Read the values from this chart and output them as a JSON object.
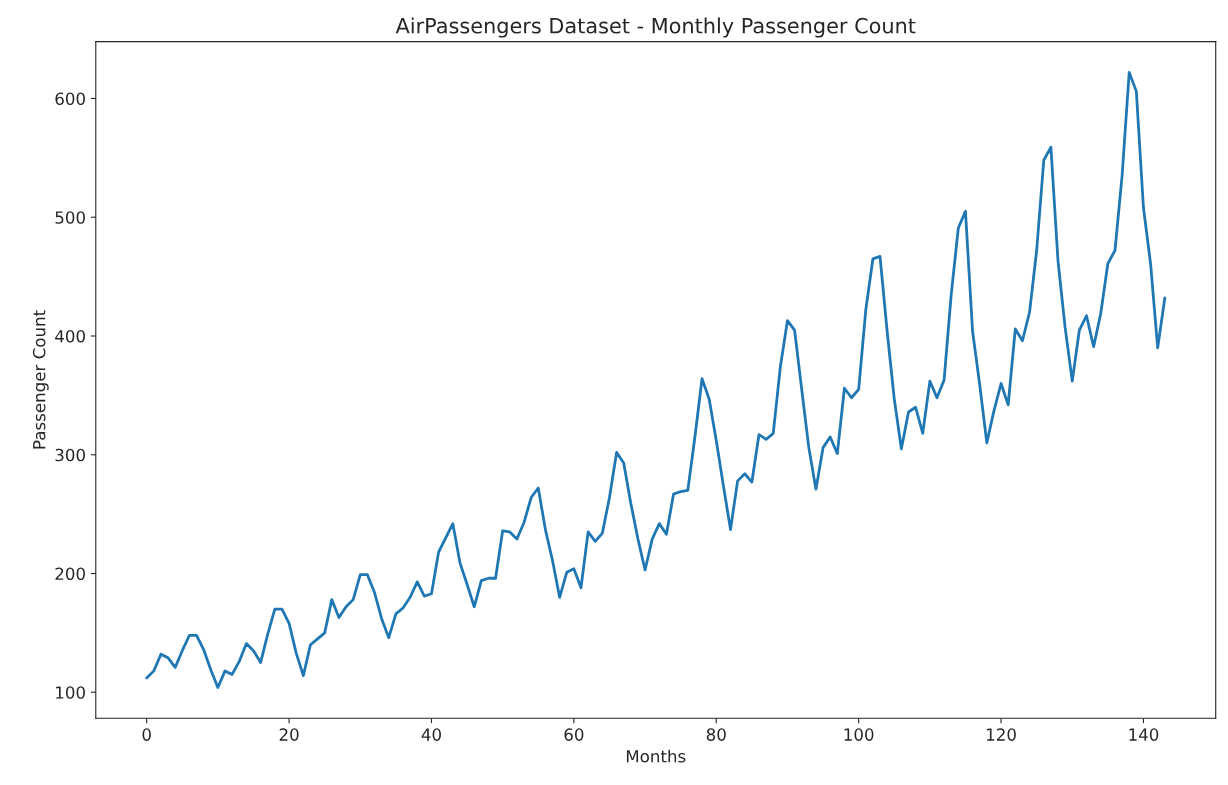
{
  "chart_data": {
    "type": "line",
    "title": "AirPassengers Dataset - Monthly Passenger Count",
    "xlabel": "Months",
    "ylabel": "Passenger Count",
    "x": [
      0,
      1,
      2,
      3,
      4,
      5,
      6,
      7,
      8,
      9,
      10,
      11,
      12,
      13,
      14,
      15,
      16,
      17,
      18,
      19,
      20,
      21,
      22,
      23,
      24,
      25,
      26,
      27,
      28,
      29,
      30,
      31,
      32,
      33,
      34,
      35,
      36,
      37,
      38,
      39,
      40,
      41,
      42,
      43,
      44,
      45,
      46,
      47,
      48,
      49,
      50,
      51,
      52,
      53,
      54,
      55,
      56,
      57,
      58,
      59,
      60,
      61,
      62,
      63,
      64,
      65,
      66,
      67,
      68,
      69,
      70,
      71,
      72,
      73,
      74,
      75,
      76,
      77,
      78,
      79,
      80,
      81,
      82,
      83,
      84,
      85,
      86,
      87,
      88,
      89,
      90,
      91,
      92,
      93,
      94,
      95,
      96,
      97,
      98,
      99,
      100,
      101,
      102,
      103,
      104,
      105,
      106,
      107,
      108,
      109,
      110,
      111,
      112,
      113,
      114,
      115,
      116,
      117,
      118,
      119,
      120,
      121,
      122,
      123,
      124,
      125,
      126,
      127,
      128,
      129,
      130,
      131,
      132,
      133,
      134,
      135,
      136,
      137,
      138,
      139,
      140,
      141,
      142,
      143
    ],
    "series": [
      {
        "color": "#1f77b4",
        "values": [
          112,
          118,
          132,
          129,
          121,
          135,
          148,
          148,
          136,
          119,
          104,
          118,
          115,
          126,
          141,
          135,
          125,
          149,
          170,
          170,
          158,
          133,
          114,
          140,
          145,
          150,
          178,
          163,
          172,
          178,
          199,
          199,
          184,
          162,
          146,
          166,
          171,
          180,
          193,
          181,
          183,
          218,
          230,
          242,
          209,
          191,
          172,
          194,
          196,
          196,
          236,
          235,
          229,
          243,
          264,
          272,
          237,
          211,
          180,
          201,
          204,
          188,
          235,
          227,
          234,
          264,
          302,
          293,
          259,
          229,
          203,
          229,
          242,
          233,
          267,
          269,
          270,
          315,
          364,
          347,
          312,
          274,
          237,
          278,
          284,
          277,
          317,
          313,
          318,
          374,
          413,
          405,
          355,
          306,
          271,
          306,
          315,
          301,
          356,
          348,
          355,
          422,
          465,
          467,
          404,
          347,
          305,
          336,
          340,
          318,
          362,
          348,
          363,
          435,
          491,
          505,
          404,
          359,
          310,
          337,
          360,
          342,
          406,
          396,
          420,
          472,
          548,
          559,
          463,
          407,
          362,
          405,
          417,
          391,
          419,
          461,
          472,
          535,
          622,
          606,
          508,
          461,
          390,
          432
        ]
      }
    ],
    "xlim": [
      -7.15,
      150.15
    ],
    "ylim": [
      78.1,
      647.9
    ],
    "xticks": [
      0,
      20,
      40,
      60,
      80,
      100,
      120,
      140
    ],
    "yticks": [
      100,
      200,
      300,
      400,
      500,
      600
    ],
    "grid": false,
    "legend": false
  }
}
